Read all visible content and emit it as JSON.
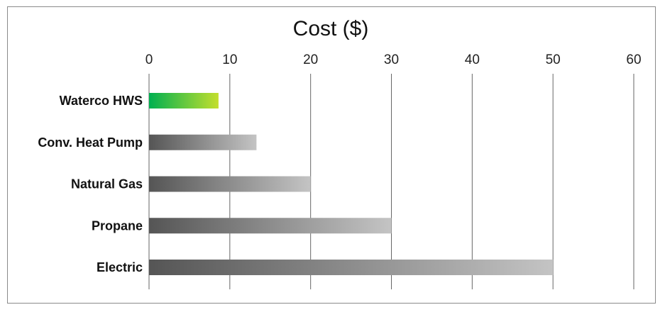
{
  "chart_data": {
    "type": "bar",
    "orientation": "horizontal",
    "title": "Cost ($)",
    "xlabel": "",
    "ylabel": "",
    "xlim": [
      0,
      60
    ],
    "ticks": [
      0,
      10,
      20,
      30,
      40,
      50,
      60
    ],
    "grid": "vertical",
    "categories": [
      "Waterco HWS",
      "Conv. Heat Pump",
      "Natural Gas",
      "Propane",
      "Electric"
    ],
    "values": [
      8.6,
      13.3,
      20,
      30,
      50
    ],
    "bar_colors": [
      {
        "start": "#00b050",
        "end": "#c4df2e"
      },
      {
        "start": "#555555",
        "end": "#c4c4c4"
      },
      {
        "start": "#555555",
        "end": "#c4c4c4"
      },
      {
        "start": "#555555",
        "end": "#c4c4c4"
      },
      {
        "start": "#555555",
        "end": "#c4c4c4"
      }
    ],
    "gridline_color": "#666666"
  }
}
